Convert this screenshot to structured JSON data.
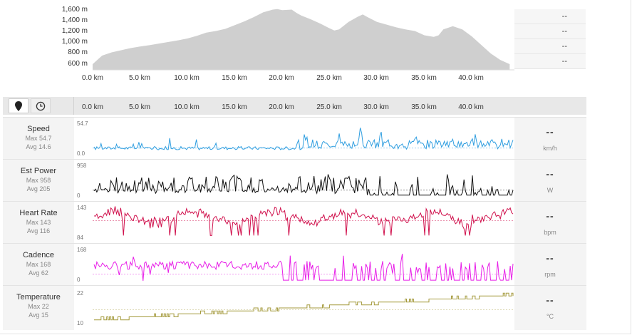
{
  "elevation": {
    "y_ticks": [
      "1,600 m",
      "1,400 m",
      "1,200 m",
      "1,000 m",
      "800 m",
      "600 m"
    ],
    "km_ticks": [
      "0.0 km",
      "5.0 km",
      "10.0 km",
      "15.0 km",
      "20.0 km",
      "25.0 km",
      "30.0 km",
      "35.0 km",
      "40.0 km"
    ],
    "fill_color": "#cfcfcf",
    "profile_km": [
      0,
      1,
      2,
      3,
      4,
      5,
      6,
      7,
      8,
      9,
      10,
      11,
      12,
      13,
      14,
      15,
      16,
      17,
      18,
      19,
      19.5,
      20,
      21,
      21.5,
      22,
      23,
      24,
      25,
      25.5,
      26,
      27,
      28,
      28.5,
      29,
      30,
      31,
      32,
      33,
      34,
      35,
      36,
      36.5,
      37,
      38,
      39,
      40,
      41,
      42,
      43,
      44
    ],
    "profile_m": [
      600,
      760,
      820,
      860,
      900,
      930,
      955,
      985,
      1015,
      1045,
      1080,
      1130,
      1190,
      1220,
      1260,
      1330,
      1400,
      1480,
      1570,
      1620,
      1630,
      1610,
      1620,
      1560,
      1510,
      1440,
      1360,
      1270,
      1230,
      1250,
      1390,
      1490,
      1530,
      1480,
      1390,
      1340,
      1290,
      1250,
      1220,
      1140,
      1110,
      1140,
      1250,
      1310,
      1250,
      1120,
      960,
      800,
      680,
      600
    ]
  },
  "summary": {
    "values": [
      "--",
      "--",
      "--",
      "--"
    ]
  },
  "toolbar": {
    "map_icon": "map-pin-icon",
    "time_icon": "clock-icon",
    "km_ticks": [
      "0.0 km",
      "5.0 km",
      "10.0 km",
      "15.0 km",
      "20.0 km",
      "25.0 km",
      "30.0 km",
      "35.0 km",
      "40.0 km"
    ]
  },
  "metrics": [
    {
      "title": "Speed",
      "max": "Max 54.7",
      "avg": "Avg 14.6",
      "ymax": "54.7",
      "ymin": "0.0",
      "dash": "--",
      "unit": "km/h",
      "color": "#2f9ee0"
    },
    {
      "title": "Est Power",
      "max": "Max 958",
      "avg": "Avg 205",
      "ymax": "958",
      "ymin": "0",
      "dash": "--",
      "unit": "W",
      "color": "#111111"
    },
    {
      "title": "Heart Rate",
      "max": "Max 143",
      "avg": "Avg 116",
      "ymax": "143",
      "ymin": "84",
      "dash": "--",
      "unit": "bpm",
      "color": "#d0104c"
    },
    {
      "title": "Cadence",
      "max": "Max 168",
      "avg": "Avg 62",
      "ymax": "168",
      "ymin": "0",
      "dash": "--",
      "unit": "rpm",
      "color": "#e81ee8"
    },
    {
      "title": "Temperature",
      "max": "Max 22",
      "avg": "Avg 15",
      "ymax": "22",
      "ymin": "10",
      "dash": "--",
      "unit": "°C",
      "color": "#a49a3c"
    }
  ]
}
